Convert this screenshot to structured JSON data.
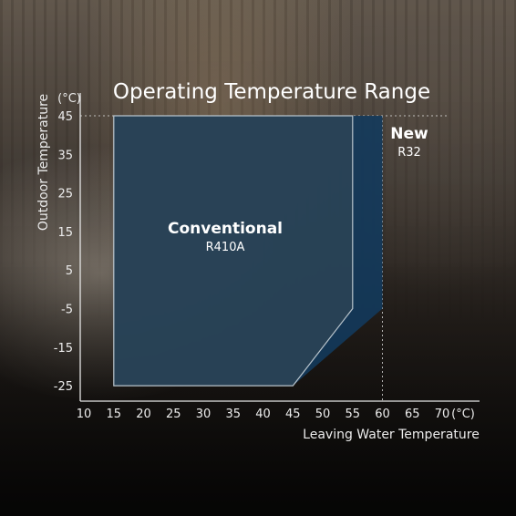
{
  "chart_data": {
    "type": "area",
    "title": "Operating Temperature Range",
    "xlabel": "Leaving Water Temperature",
    "ylabel": "Outdoor Temperature",
    "x_unit": "(°C)",
    "y_unit": "(°C)",
    "xlim": [
      10,
      70
    ],
    "ylim": [
      -25,
      45
    ],
    "x_ticks": [
      10,
      15,
      20,
      25,
      30,
      35,
      40,
      45,
      50,
      55,
      60,
      65,
      70
    ],
    "y_ticks": [
      45,
      35,
      25,
      15,
      5,
      -5,
      -15,
      -25
    ],
    "series": [
      {
        "name": "Conventional",
        "subtitle": "R410A",
        "color": "#2b4355",
        "outline": "#b8c4cc",
        "points": [
          [
            15,
            -25
          ],
          [
            45,
            -25
          ],
          [
            55,
            -5
          ],
          [
            55,
            45
          ],
          [
            15,
            45
          ]
        ]
      },
      {
        "name": "New",
        "subtitle": "R32",
        "color": "#133a5c",
        "points": [
          [
            15,
            -25
          ],
          [
            45,
            -25
          ],
          [
            60,
            -5
          ],
          [
            60,
            45
          ],
          [
            15,
            45
          ]
        ]
      }
    ],
    "reference_lines": [
      {
        "axis": "y",
        "value": 45,
        "style": "dotted"
      },
      {
        "axis": "x",
        "value": 60,
        "style": "dotted"
      }
    ]
  }
}
